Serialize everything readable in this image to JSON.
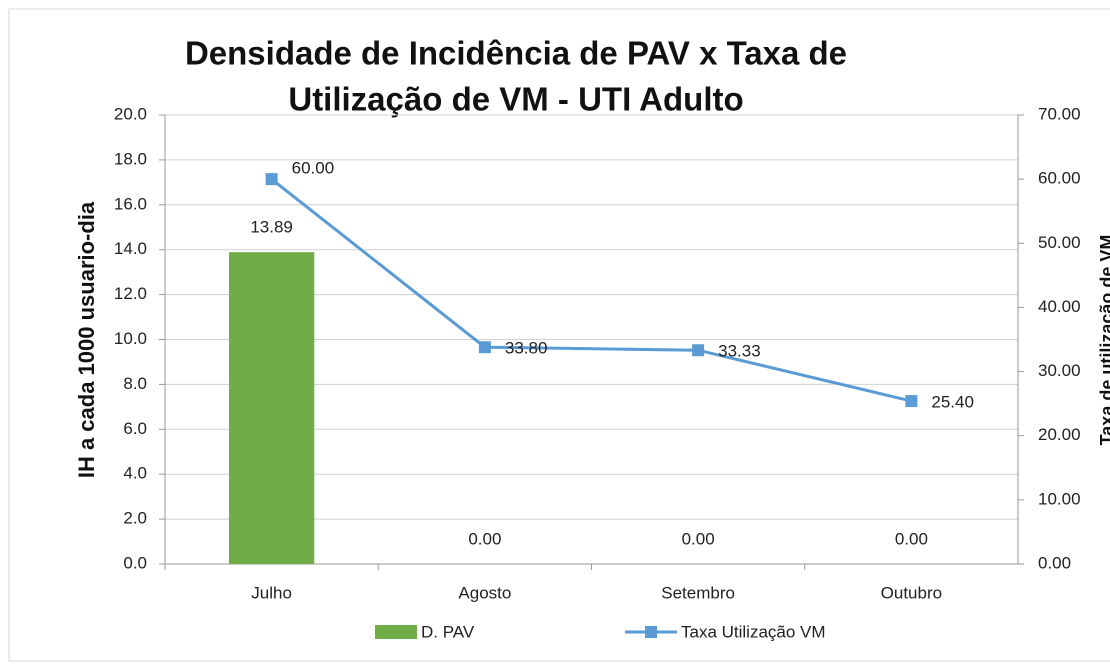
{
  "chart_data": {
    "type": "bar-line",
    "title": [
      "Densidade de Incidência de PAV x Taxa de",
      "Utilização de VM - UTI Adulto"
    ],
    "ylabel": "IH a cada 1000 usuario-dia",
    "y2label": "Taxa de utilização de VM",
    "categories": [
      "Julho",
      "Agosto",
      "Setembro",
      "Outubro"
    ],
    "series": [
      {
        "name": "D. PAV",
        "type": "bar",
        "color": "#70ad47",
        "values": [
          13.89,
          0,
          0,
          0
        ],
        "value_labels": [
          "13.89",
          "0.00",
          "0.00",
          "0.00"
        ]
      },
      {
        "name": "Taxa Utilização VM",
        "type": "line",
        "axis": "y2",
        "color": "#5b9bd5",
        "values": [
          60,
          33.8,
          33.33,
          25.4
        ],
        "value_labels": [
          "60.00",
          "33.80",
          "33.33",
          "25.40"
        ]
      }
    ],
    "ylim": [
      0,
      20
    ],
    "yticks": [
      {
        "value": 0,
        "label": "0.0"
      },
      {
        "value": 2,
        "label": "2.0"
      },
      {
        "value": 4,
        "label": "4.0"
      },
      {
        "value": 6,
        "label": "6.0"
      },
      {
        "value": 8,
        "label": "8.0"
      },
      {
        "value": 10,
        "label": "10.0"
      },
      {
        "value": 12,
        "label": "12.0"
      },
      {
        "value": 14,
        "label": "14.0"
      },
      {
        "value": 16,
        "label": "16.0"
      },
      {
        "value": 18,
        "label": "18.0"
      },
      {
        "value": 20,
        "label": "20.0"
      }
    ],
    "y2lim": [
      0,
      70
    ],
    "y2ticks": [
      {
        "value": 0,
        "label": "0.00"
      },
      {
        "value": 10,
        "label": "10.00"
      },
      {
        "value": 20,
        "label": "20.00"
      },
      {
        "value": 30,
        "label": "30.00"
      },
      {
        "value": 40,
        "label": "40.00"
      },
      {
        "value": 50,
        "label": "50.00"
      },
      {
        "value": 60,
        "label": "60.00"
      },
      {
        "value": 70,
        "label": "70.00"
      }
    ],
    "grid": true,
    "legend": "bottom"
  }
}
